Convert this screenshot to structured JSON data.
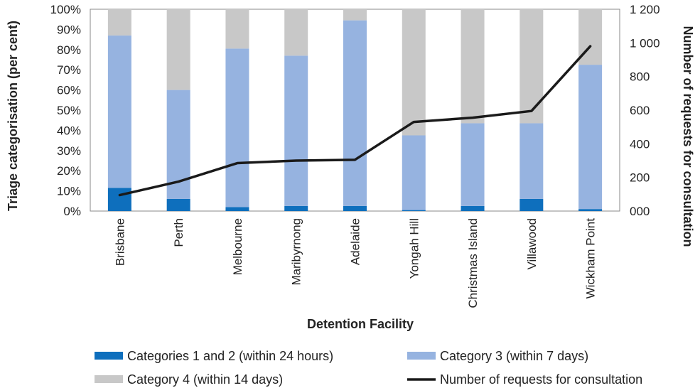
{
  "chart_data": {
    "type": "bar",
    "stacked": true,
    "categories": [
      "Brisbane",
      "Perth",
      "Melbourne",
      "Maribyrnong",
      "Adelaide",
      "Yongah Hill",
      "Christmas Island",
      "Villawood",
      "Wickham Point"
    ],
    "series": [
      {
        "name": "Categories 1 and 2 (within 24 hours)",
        "axis": "left",
        "values": [
          11.5,
          6,
          2,
          2.5,
          2.5,
          0.5,
          2.5,
          6,
          1
        ],
        "color": "#0e6fbd"
      },
      {
        "name": "Category 3 (within 7 days)",
        "axis": "left",
        "values": [
          75.5,
          54,
          78.5,
          74.5,
          92,
          37,
          41,
          37.5,
          71.5
        ],
        "color": "#96b3e0"
      },
      {
        "name": "Category 4 (within 14 days)",
        "axis": "left",
        "values": [
          13,
          40,
          19.5,
          23,
          5.5,
          62.5,
          56.5,
          56.5,
          27.5
        ],
        "color": "#c8c8c8"
      },
      {
        "name": "Number of requests for consultation",
        "axis": "right",
        "type": "line",
        "values": [
          95,
          175,
          285,
          300,
          305,
          530,
          555,
          595,
          980
        ],
        "color": "#1a1a1a"
      }
    ],
    "xlabel": "Detention Facility",
    "ylabel": "Triage categorisation (per cent)",
    "y2label": "Number of requests for consultation",
    "ylim": [
      0,
      100
    ],
    "y2lim": [
      0,
      1200
    ],
    "yticks": [
      "0%",
      "10%",
      "20%",
      "30%",
      "40%",
      "50%",
      "60%",
      "70%",
      "80%",
      "90%",
      "100%"
    ],
    "y2ticks": [
      "000",
      "200",
      "400",
      "600",
      "800",
      "1 000",
      "1 200"
    ],
    "grid": false,
    "legend_position": "bottom"
  }
}
